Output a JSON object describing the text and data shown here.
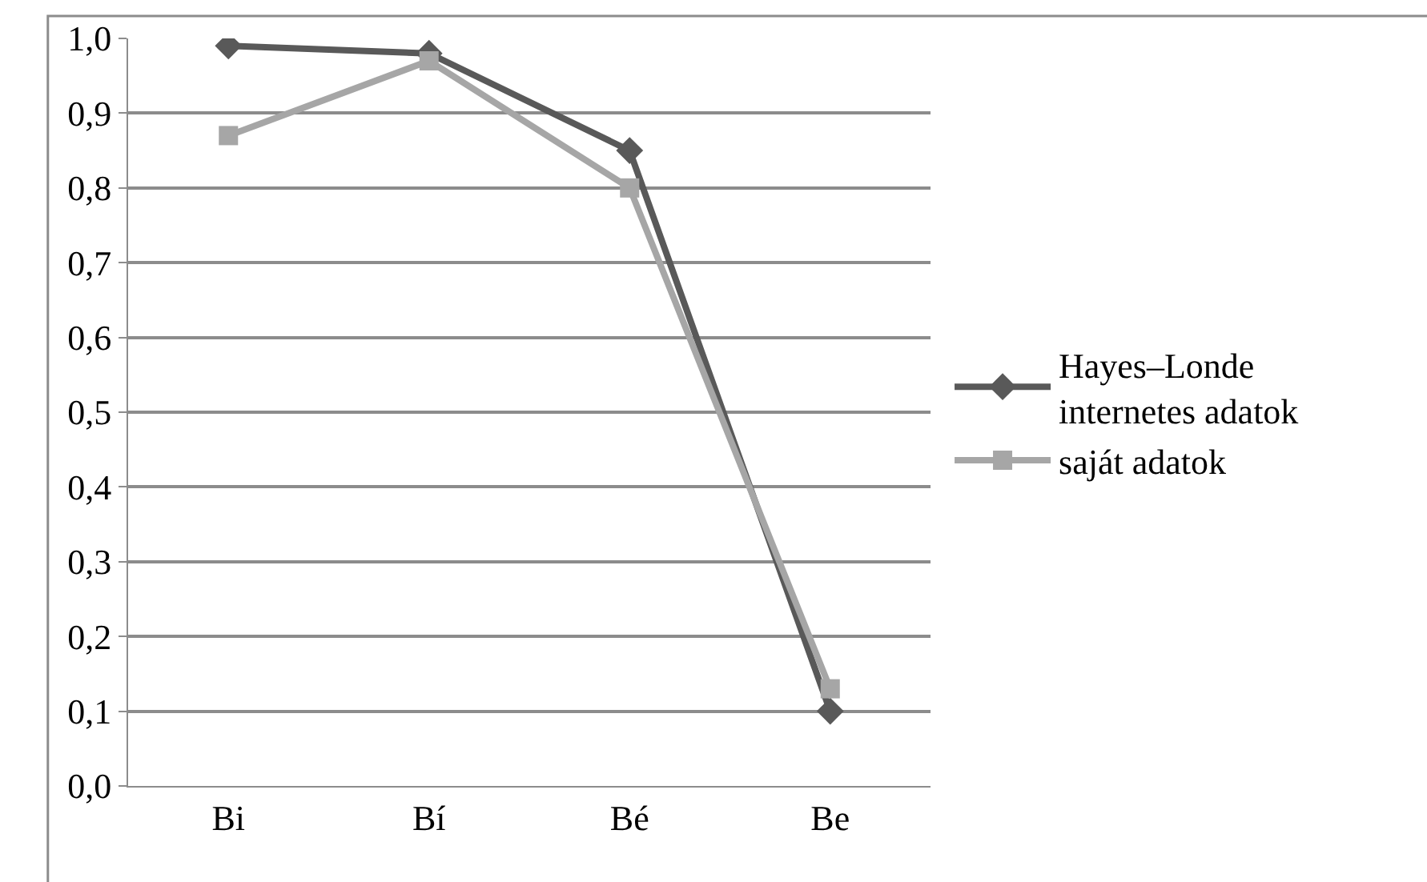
{
  "chart_data": {
    "type": "line",
    "categories": [
      "Bi",
      "Bí",
      "Bé",
      "Be"
    ],
    "series": [
      {
        "name": "Hayes–Londe internetes adatok",
        "color": "#595959",
        "values": [
          0.99,
          0.98,
          0.85,
          0.1
        ],
        "marker": "diamond"
      },
      {
        "name": "saját adatok",
        "color": "#a6a6a6",
        "values": [
          0.87,
          0.97,
          0.8,
          0.13
        ],
        "marker": "square"
      }
    ],
    "ylim": [
      0,
      1
    ],
    "yticks": [
      {
        "value": 0,
        "label": "0,0"
      },
      {
        "value": 0.1,
        "label": "0,1"
      },
      {
        "value": 0.2,
        "label": "0,2"
      },
      {
        "value": 0.3,
        "label": "0,3"
      },
      {
        "value": 0.4,
        "label": "0,4"
      },
      {
        "value": 0.5,
        "label": "0,5"
      },
      {
        "value": 0.6,
        "label": "0,6"
      },
      {
        "value": 0.7,
        "label": "0,7"
      },
      {
        "value": 0.8,
        "label": "0,8"
      },
      {
        "value": 0.9,
        "label": "0,9"
      },
      {
        "value": 1.0,
        "label": "1,0"
      }
    ],
    "grid": "y",
    "legend": "right",
    "line_style": "solid"
  }
}
